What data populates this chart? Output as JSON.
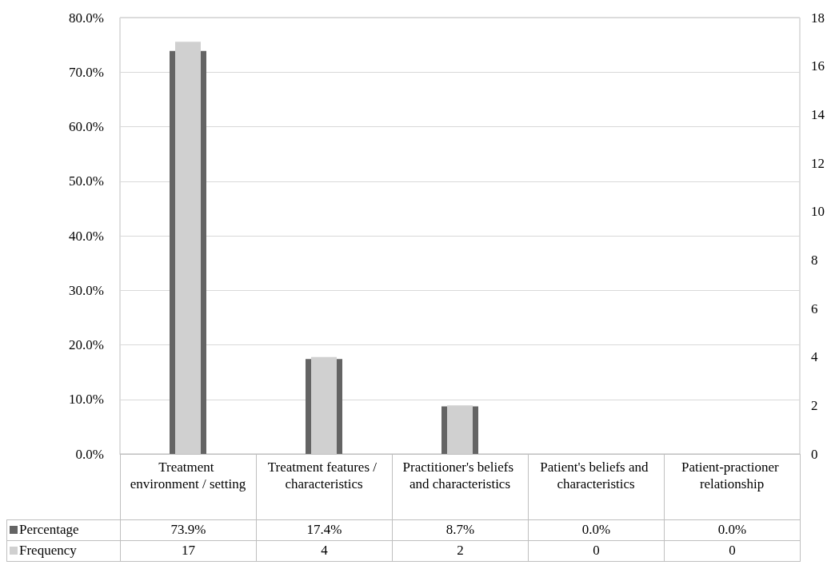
{
  "chart_data": {
    "type": "bar",
    "categories": [
      "Treatment environment / setting",
      "Treatment features / characteristics",
      "Practitioner's beliefs and characteristics",
      "Patient's beliefs and characteristics",
      "Patient-practioner relationship"
    ],
    "series": [
      {
        "name": "Percentage",
        "color": "#646464",
        "values": [
          73.9,
          17.4,
          8.7,
          0,
          0
        ],
        "value_labels": [
          "73.9%",
          "17.4%",
          "8.7%",
          "0.0%",
          "0.0%"
        ]
      },
      {
        "name": "Frequency",
        "color": "#d0d0d0",
        "axis": "y2",
        "values": [
          17,
          4,
          2,
          0,
          0
        ],
        "value_labels": [
          "17",
          "4",
          "2",
          "0",
          "0"
        ]
      }
    ],
    "ylim": [
      0,
      80
    ],
    "yticks": [
      {
        "value": 0,
        "label": "0.0%"
      },
      {
        "value": 10,
        "label": "10.0%"
      },
      {
        "value": 20,
        "label": "20.0%"
      },
      {
        "value": 30,
        "label": "30.0%"
      },
      {
        "value": 40,
        "label": "40.0%"
      },
      {
        "value": 50,
        "label": "50.0%"
      },
      {
        "value": 60,
        "label": "60.0%"
      },
      {
        "value": 70,
        "label": "70.0%"
      },
      {
        "value": 80,
        "label": "80.0%"
      }
    ],
    "y2lim": [
      0,
      18
    ],
    "y2ticks": [
      0,
      2,
      4,
      6,
      8,
      10,
      12,
      14,
      16,
      18
    ],
    "grid": "y",
    "legend": "bottom"
  }
}
